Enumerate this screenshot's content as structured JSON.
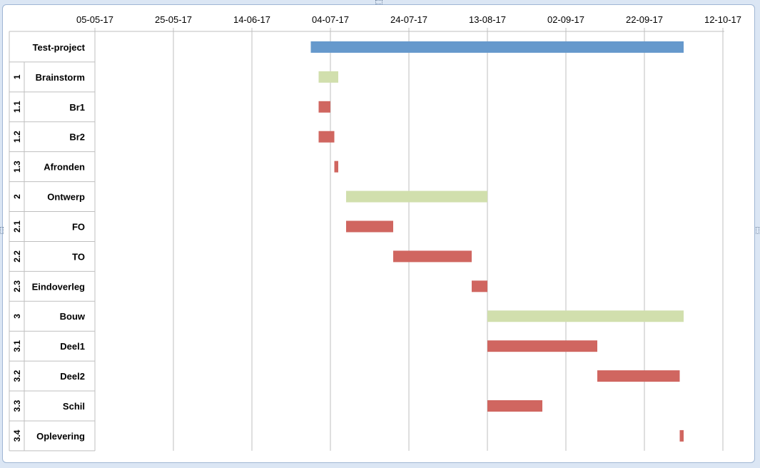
{
  "chart_data": {
    "type": "bar",
    "subtype": "gantt",
    "x_axis": {
      "ticks": [
        "05-05-17",
        "25-05-17",
        "14-06-17",
        "04-07-17",
        "24-07-17",
        "13-08-17",
        "02-09-17",
        "22-09-17",
        "12-10-17"
      ],
      "range": [
        "2017-05-05",
        "2017-10-12"
      ],
      "position": "top",
      "gridlines": true
    },
    "tasks": [
      {
        "id": "",
        "name": "Test-project",
        "start": "2017-06-29",
        "end": "2017-10-02",
        "kind": "project"
      },
      {
        "id": "1",
        "name": "Brainstorm",
        "start": "2017-07-01",
        "end": "2017-07-06",
        "kind": "phase"
      },
      {
        "id": "1.1",
        "name": "Br1",
        "start": "2017-07-01",
        "end": "2017-07-04",
        "kind": "task"
      },
      {
        "id": "1.2",
        "name": "Br2",
        "start": "2017-07-01",
        "end": "2017-07-05",
        "kind": "task"
      },
      {
        "id": "1.3",
        "name": "Afronden",
        "start": "2017-07-05",
        "end": "2017-07-06",
        "kind": "task"
      },
      {
        "id": "2",
        "name": "Ontwerp",
        "start": "2017-07-08",
        "end": "2017-08-13",
        "kind": "phase"
      },
      {
        "id": "2.1",
        "name": "FO",
        "start": "2017-07-08",
        "end": "2017-07-20",
        "kind": "task"
      },
      {
        "id": "2.2",
        "name": "TO",
        "start": "2017-07-20",
        "end": "2017-08-09",
        "kind": "task"
      },
      {
        "id": "2.3",
        "name": "Eindoverleg",
        "start": "2017-08-09",
        "end": "2017-08-13",
        "kind": "task"
      },
      {
        "id": "3",
        "name": "Bouw",
        "start": "2017-08-13",
        "end": "2017-10-02",
        "kind": "phase"
      },
      {
        "id": "3.1",
        "name": "Deel1",
        "start": "2017-08-13",
        "end": "2017-09-10",
        "kind": "task"
      },
      {
        "id": "3.2",
        "name": "Deel2",
        "start": "2017-09-10",
        "end": "2017-10-01",
        "kind": "task"
      },
      {
        "id": "3.3",
        "name": "Schil",
        "start": "2017-08-13",
        "end": "2017-08-27",
        "kind": "task"
      },
      {
        "id": "3.4",
        "name": "Oplevering",
        "start": "2017-10-01",
        "end": "2017-10-02",
        "kind": "task"
      }
    ],
    "colors": {
      "project": "#6699cc",
      "phase": "#d1dfad",
      "task": "#d06660",
      "grid": "#bfbfbf",
      "text": "#000000"
    }
  }
}
